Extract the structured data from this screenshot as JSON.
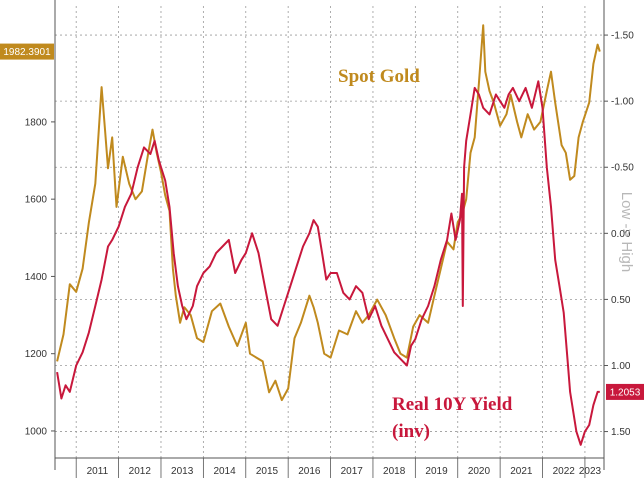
{
  "chart_data": {
    "type": "line",
    "title": "",
    "x_tick_labels": [
      "2011",
      "2012",
      "2013",
      "2014",
      "2015",
      "2016",
      "2017",
      "2018",
      "2019",
      "2020",
      "2021",
      "2022",
      "2023"
    ],
    "x_range": [
      2010.5,
      2023.45
    ],
    "left_axis": {
      "ticks": [
        1000,
        1200,
        1400,
        1600,
        1800
      ],
      "tick_labels": [
        "1000",
        "1200",
        "1400",
        "1600",
        "1800"
      ],
      "range": [
        930,
        2100
      ]
    },
    "right_axis": {
      "label": "Low -> High",
      "inverted": true,
      "ticks": [
        -1.5,
        -1.0,
        -0.5,
        0.0,
        0.5,
        1.0,
        1.5
      ],
      "tick_labels": [
        "-1.50",
        "-1.00",
        "-0.50",
        "0.00",
        "0.50",
        "1.00",
        "1.50"
      ],
      "range": [
        -1.72,
        1.7
      ]
    },
    "grid": true,
    "series": [
      {
        "name": "Spot Gold",
        "axis": "left",
        "color": "#c08a1e",
        "last_value_label": "1982.3901",
        "x": [
          2010.55,
          2010.7,
          2010.85,
          2011.0,
          2011.15,
          2011.3,
          2011.45,
          2011.6,
          2011.68,
          2011.75,
          2011.85,
          2011.95,
          2012.1,
          2012.25,
          2012.4,
          2012.55,
          2012.7,
          2012.8,
          2012.9,
          2013.0,
          2013.1,
          2013.2,
          2013.28,
          2013.35,
          2013.45,
          2013.55,
          2013.7,
          2013.85,
          2014.0,
          2014.2,
          2014.4,
          2014.6,
          2014.8,
          2015.0,
          2015.1,
          2015.25,
          2015.4,
          2015.55,
          2015.7,
          2015.85,
          2016.0,
          2016.15,
          2016.3,
          2016.5,
          2016.6,
          2016.7,
          2016.85,
          2017.0,
          2017.2,
          2017.4,
          2017.6,
          2017.75,
          2017.9,
          2018.1,
          2018.3,
          2018.5,
          2018.65,
          2018.8,
          2018.95,
          2019.1,
          2019.3,
          2019.45,
          2019.6,
          2019.75,
          2019.9,
          2020.0,
          2020.1,
          2020.2,
          2020.3,
          2020.4,
          2020.5,
          2020.6,
          2020.65,
          2020.75,
          2020.85,
          2021.0,
          2021.15,
          2021.25,
          2021.4,
          2021.5,
          2021.65,
          2021.8,
          2021.95,
          2022.1,
          2022.2,
          2022.3,
          2022.45,
          2022.55,
          2022.65,
          2022.75,
          2022.85,
          2022.95,
          2023.1,
          2023.2,
          2023.3,
          2023.35
        ],
        "y": [
          1180,
          1250,
          1380,
          1360,
          1420,
          1540,
          1640,
          1890,
          1780,
          1680,
          1760,
          1580,
          1710,
          1640,
          1600,
          1620,
          1720,
          1780,
          1720,
          1670,
          1610,
          1570,
          1420,
          1350,
          1280,
          1320,
          1300,
          1240,
          1230,
          1310,
          1330,
          1270,
          1220,
          1280,
          1200,
          1190,
          1180,
          1100,
          1130,
          1080,
          1110,
          1240,
          1280,
          1350,
          1320,
          1280,
          1200,
          1190,
          1260,
          1250,
          1310,
          1280,
          1300,
          1340,
          1300,
          1240,
          1200,
          1190,
          1270,
          1300,
          1280,
          1350,
          1420,
          1490,
          1470,
          1540,
          1560,
          1600,
          1720,
          1760,
          1900,
          2050,
          1930,
          1880,
          1850,
          1790,
          1820,
          1870,
          1800,
          1760,
          1820,
          1780,
          1800,
          1880,
          1930,
          1850,
          1740,
          1720,
          1650,
          1660,
          1760,
          1800,
          1850,
          1950,
          2000,
          1982
        ]
      },
      {
        "name": "Real 10Y Yield (inv)",
        "axis": "right",
        "color": "#c8183c",
        "last_value_label": "1.2053",
        "x": [
          2010.55,
          2010.65,
          2010.75,
          2010.85,
          2011.0,
          2011.15,
          2011.3,
          2011.45,
          2011.6,
          2011.75,
          2011.85,
          2012.0,
          2012.15,
          2012.3,
          2012.45,
          2012.6,
          2012.75,
          2012.85,
          2012.95,
          2013.1,
          2013.2,
          2013.3,
          2013.4,
          2013.5,
          2013.6,
          2013.75,
          2013.85,
          2014.0,
          2014.15,
          2014.3,
          2014.45,
          2014.6,
          2014.75,
          2014.9,
          2015.0,
          2015.15,
          2015.3,
          2015.45,
          2015.6,
          2015.75,
          2015.9,
          2016.05,
          2016.2,
          2016.35,
          2016.5,
          2016.6,
          2016.7,
          2016.8,
          2016.9,
          2017.0,
          2017.15,
          2017.3,
          2017.45,
          2017.6,
          2017.75,
          2017.9,
          2018.05,
          2018.2,
          2018.35,
          2018.5,
          2018.65,
          2018.8,
          2018.9,
          2019.0,
          2019.15,
          2019.3,
          2019.45,
          2019.6,
          2019.75,
          2019.85,
          2019.95,
          2020.05,
          2020.1,
          2020.12,
          2020.15,
          2020.2,
          2020.3,
          2020.4,
          2020.5,
          2020.6,
          2020.75,
          2020.9,
          2021.0,
          2021.1,
          2021.2,
          2021.3,
          2021.45,
          2021.6,
          2021.75,
          2021.9,
          2022.0,
          2022.1,
          2022.2,
          2022.3,
          2022.4,
          2022.5,
          2022.6,
          2022.65,
          2022.7,
          2022.8,
          2022.9,
          2023.0,
          2023.1,
          2023.2,
          2023.3,
          2023.35
        ],
        "y": [
          1.05,
          1.25,
          1.15,
          1.2,
          1.0,
          0.9,
          0.75,
          0.55,
          0.35,
          0.1,
          0.05,
          -0.05,
          -0.2,
          -0.3,
          -0.5,
          -0.65,
          -0.6,
          -0.7,
          -0.55,
          -0.4,
          -0.2,
          0.15,
          0.4,
          0.55,
          0.65,
          0.55,
          0.4,
          0.3,
          0.25,
          0.15,
          0.1,
          0.05,
          0.3,
          0.2,
          0.15,
          0.0,
          0.15,
          0.4,
          0.65,
          0.7,
          0.55,
          0.4,
          0.25,
          0.1,
          0.0,
          -0.1,
          -0.05,
          0.15,
          0.35,
          0.3,
          0.3,
          0.45,
          0.5,
          0.4,
          0.45,
          0.65,
          0.55,
          0.7,
          0.8,
          0.9,
          0.95,
          1.0,
          0.85,
          0.8,
          0.65,
          0.55,
          0.4,
          0.2,
          0.05,
          -0.15,
          0.05,
          -0.1,
          -0.3,
          0.55,
          -0.5,
          -0.7,
          -0.9,
          -1.1,
          -1.05,
          -0.95,
          -0.9,
          -1.05,
          -1.0,
          -0.95,
          -1.05,
          -1.1,
          -1.0,
          -1.1,
          -0.95,
          -1.15,
          -0.95,
          -0.5,
          -0.2,
          0.2,
          0.4,
          0.6,
          1.0,
          1.2,
          1.3,
          1.5,
          1.6,
          1.5,
          1.45,
          1.3,
          1.2,
          1.2
        ]
      }
    ],
    "annotations": [
      {
        "text": "Spot Gold",
        "series": "Spot Gold"
      },
      {
        "text": "Real 10Y Yield",
        "series": "Real 10Y Yield (inv)"
      },
      {
        "text": "(inv)",
        "series": "Real 10Y Yield (inv)"
      }
    ]
  }
}
